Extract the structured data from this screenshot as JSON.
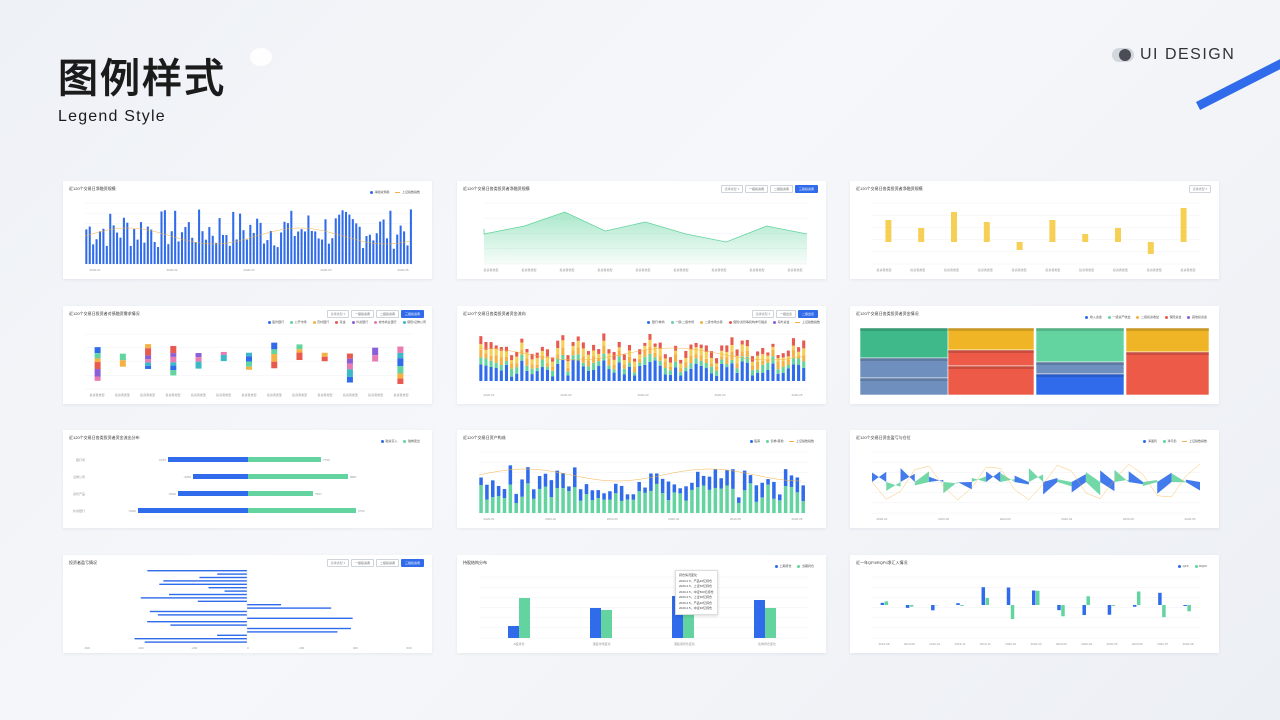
{
  "header": {
    "title_cn": "图例样式",
    "title_en": "Legend Style",
    "brand": "UI DESIGN"
  },
  "colors": {
    "blue": "#2f6bea",
    "green": "#63d49f",
    "orange": "#f5b244",
    "yellow": "#f6cf55",
    "red": "#e85a4f",
    "purple": "#8b5fd6",
    "pink": "#e87bb1",
    "teal": "#3cb9c9",
    "grid": "#eef0f3"
  },
  "cards": [
    {
      "title": "近120个交易日净融资规模",
      "legend": [
        "净融资规模",
        "上证指数指数"
      ],
      "segment": null,
      "x_labels": [
        "2020-01",
        "2020-02",
        "2020-03",
        "2020-04",
        "2020-05"
      ]
    },
    {
      "title": "近120个交易日各类投资者净融资规模",
      "legend": [],
      "segment": {
        "select": "选择类型",
        "buttons": [
          "一级投资者",
          "二级投资者",
          "三级投资者"
        ],
        "active": 2
      },
      "x_labels": [
        "投资者类型",
        "投资者类型",
        "投资者类型",
        "投资者类型",
        "投资者类型",
        "投资者类型",
        "投资者类型",
        "投资者类型",
        "投资者类型"
      ]
    },
    {
      "title": "近120个交易日各类投资者净融资规模",
      "legend": [],
      "segment": {
        "select": "选择类型",
        "buttons": [],
        "active": -1
      },
      "x_labels": [
        "投资者类型",
        "投资者类型",
        "投资者类型",
        "投资者类型",
        "投资者类型",
        "投资者类型",
        "投资者类型",
        "投资者类型",
        "投资者类型",
        "投资者类型"
      ]
    },
    {
      "title": "近120个交易日投资者对债融资需求情况",
      "legend": [
        "股份银行",
        "公开市场",
        "农村银行",
        "基金",
        "外资银行",
        "城市商业银行",
        "保险/证券公司"
      ],
      "segment": {
        "select": "选择类型",
        "buttons": [
          "一级投资者",
          "二级投资者",
          "三级投资者"
        ],
        "active": 2
      },
      "x_labels": [
        "投资者类型",
        "投资者类型",
        "投资者类型",
        "投资者类型",
        "投资者类型",
        "投资者类型",
        "投资者类型",
        "投资者类型",
        "投资者类型",
        "投资者类型",
        "投资者类型",
        "投资者类型",
        "投资者类型"
      ]
    },
    {
      "title": "近120个交易日各类投资者资金流向",
      "legend": [
        "银行/券商",
        "一级/二级市场",
        "二级市场交易",
        "保险/资管等机构参与融资",
        "海外资金",
        "上证指数指数"
      ],
      "segment": {
        "select": "选择类型",
        "buttons": [
          "一级出表",
          "二级出表"
        ],
        "active": 1
      },
      "x_labels": [
        "2020-01",
        "2020-02",
        "2020-03",
        "2020-04",
        "2020-05"
      ]
    },
    {
      "title": "近120个交易日各类投资者资金情况",
      "legend": [
        "收入资金",
        "一级资产收益",
        "二级投资收益",
        "保险资金",
        "其他投资金"
      ],
      "segment": null,
      "x_labels": []
    },
    {
      "title": "近120个交易日各类投资者资金流出分布",
      "legend": [
        "融资买入",
        "融券卖出"
      ],
      "segment": null,
      "rows": [
        {
          "label": "银行间",
          "left": "-5765",
          "right": "7765"
        },
        {
          "label": "证券公司",
          "left": "-3266",
          "right": "8687"
        },
        {
          "label": "资管产品",
          "left": "-5620",
          "right": "7567"
        },
        {
          "label": "外资银行",
          "left": "-5620",
          "right": "6752"
        }
      ]
    },
    {
      "title": "近120个交易日资产构成",
      "legend": [
        "股票",
        "债券/其他",
        "上证指数指数"
      ],
      "segment": null,
      "x_labels": [
        "2020-01",
        "2020-02",
        "2020-03",
        "2020-04",
        "2020-05",
        "2020-06"
      ]
    },
    {
      "title": "近120个交易日资金盈亏与仓位",
      "legend": [
        "净盈利",
        "净亏损",
        "上证指数指数"
      ],
      "segment": null,
      "x_labels": [
        "2020-01",
        "2020-02",
        "2020-03",
        "2020-04",
        "2020-05",
        "2020-06"
      ]
    },
    {
      "title": "投资者盈亏情况",
      "legend": [],
      "segment": {
        "select": "选择类型",
        "buttons": [
          "一级投资者",
          "二级投资者",
          "三级投资者"
        ],
        "active": 2
      },
      "x_labels": [
        "-600",
        "-400",
        "-200",
        "0",
        "200",
        "400",
        "600"
      ]
    },
    {
      "title": "持股结构分布",
      "legend": [
        "上期持仓",
        "当期持仓"
      ],
      "segment": null,
      "x_labels": [
        "A股持仓",
        "港股市场变化",
        "港股通持仓变化",
        "债券持仓变化"
      ],
      "tooltip": [
        "持仓情况变化",
        "2020.2.5，产品30亿持仓",
        "2020.2.5，上证50亿持仓",
        "2020.2.5，中证500亿持仓",
        "2020.2.5，上证30亿持仓",
        "2020.2.5，产品30亿持仓",
        "2020.2.5，中证30亿持仓"
      ]
    },
    {
      "title": "近一年QFII/RQFII净汇入情况",
      "legend": [
        "QFII",
        "RQFII"
      ],
      "segment": null,
      "x_labels": [
        "2019-08",
        "2019-09",
        "2019-10",
        "2019-11",
        "2019-12",
        "2020-01",
        "2020-02",
        "2020-03",
        "2020-04",
        "2020-05",
        "2020-06",
        "2020-07",
        "2020-08"
      ]
    }
  ]
}
